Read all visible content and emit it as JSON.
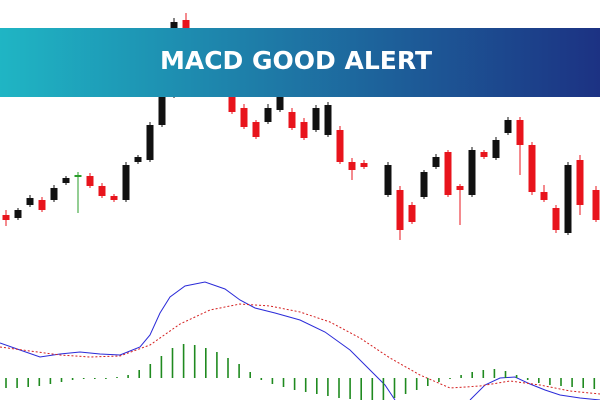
{
  "chart_data": {
    "type": "candlestick",
    "title": "MACD GOOD ALERT"
  }
}
